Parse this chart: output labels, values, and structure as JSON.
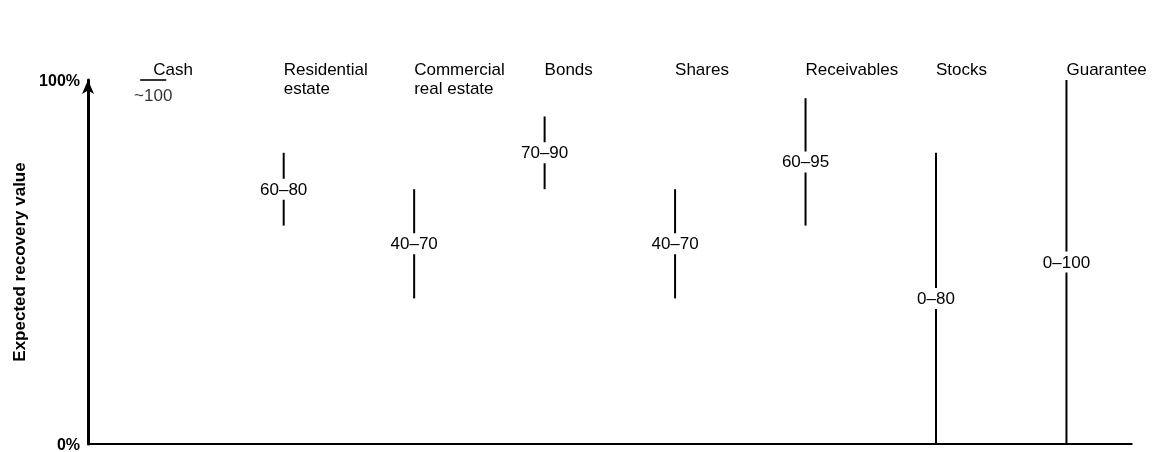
{
  "chart_data": {
    "type": "bar",
    "ylabel": "Expected recovery value",
    "categories": [
      "Cash",
      "Residential estate",
      "Commercial real estate",
      "Bonds",
      "Shares",
      "Receivables",
      "Stocks",
      "Guarantee"
    ],
    "base": [
      100,
      60,
      40,
      70,
      40,
      60,
      0,
      0
    ],
    "values": [
      0,
      20,
      30,
      20,
      30,
      35,
      80,
      100
    ],
    "value_labels": [
      "~100",
      "60–80",
      "40–70",
      "70–90",
      "40–70",
      "60–95",
      "0–80",
      "0–100"
    ],
    "color": "#000000",
    "ylim": [
      0,
      100
    ],
    "yticks": [
      {
        "value": 0,
        "label": "0%"
      },
      {
        "value": 100,
        "label": "100%"
      }
    ],
    "grid": false
  }
}
